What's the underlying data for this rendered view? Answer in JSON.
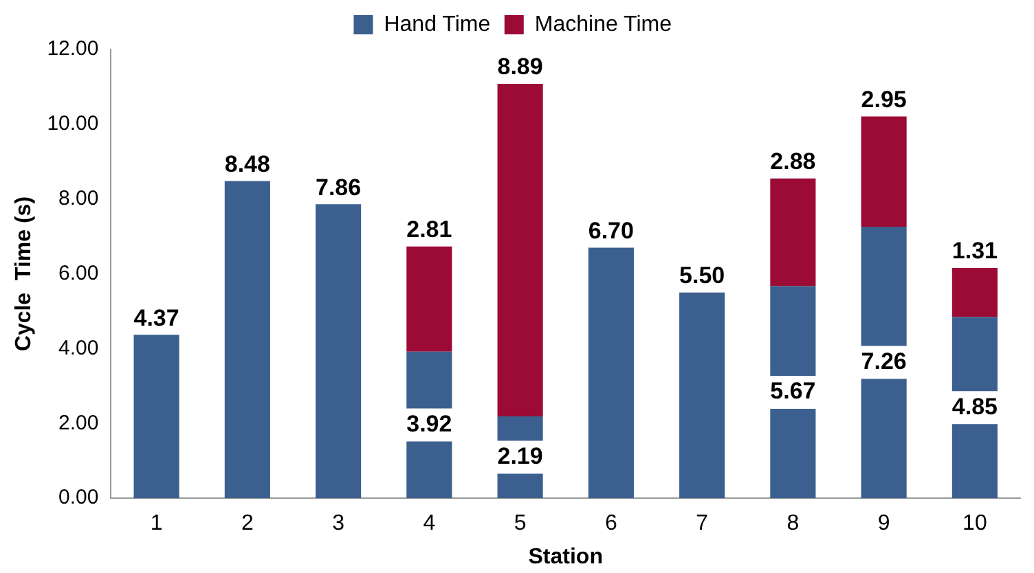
{
  "chart_data": {
    "type": "bar",
    "stacked": true,
    "xlabel": "Station",
    "ylabel": "Cycle  Time (s)",
    "categories": [
      "1",
      "2",
      "3",
      "4",
      "5",
      "6",
      "7",
      "8",
      "9",
      "10"
    ],
    "series": [
      {
        "name": "Hand Time",
        "color": "#3b5f8e",
        "values": [
          4.37,
          8.48,
          7.86,
          3.92,
          2.19,
          6.7,
          5.5,
          5.67,
          7.26,
          4.85
        ],
        "value_labels": [
          "4.37",
          "8.48",
          "7.86",
          "3.92",
          "2.19",
          "6.70",
          "5.50",
          "5.67",
          "7.26",
          "4.85"
        ]
      },
      {
        "name": "Machine Time",
        "color": "#9c0b36",
        "values": [
          null,
          null,
          null,
          2.81,
          8.89,
          null,
          null,
          2.88,
          2.95,
          1.31
        ],
        "value_labels": [
          null,
          null,
          null,
          "2.81",
          "8.89",
          null,
          null,
          "2.88",
          "2.95",
          "1.31"
        ]
      }
    ],
    "ylim": [
      0,
      12
    ],
    "yticks": [
      {
        "value": 0,
        "label": "0.00"
      },
      {
        "value": 2,
        "label": "2.00"
      },
      {
        "value": 4,
        "label": "4.00"
      },
      {
        "value": 6,
        "label": "6.00"
      },
      {
        "value": 8,
        "label": "8.00"
      },
      {
        "value": 10,
        "label": "10.00"
      },
      {
        "value": 12,
        "label": "12.00"
      }
    ],
    "grid": false,
    "legend": "top"
  }
}
